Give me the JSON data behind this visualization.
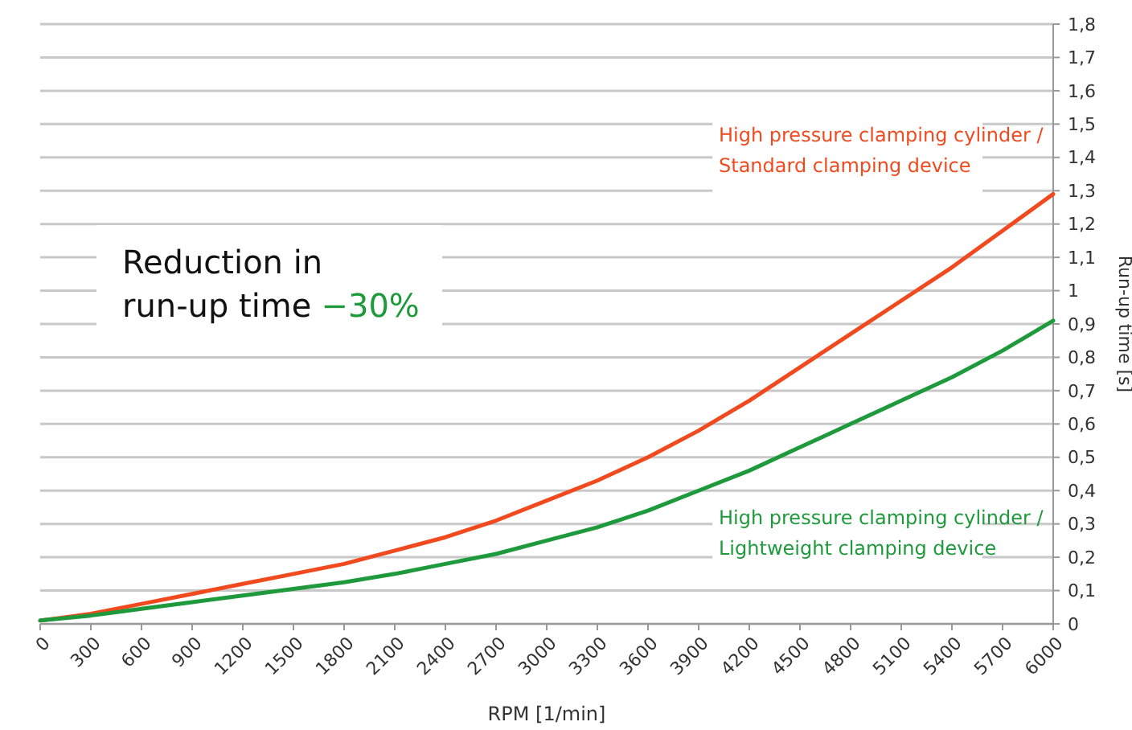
{
  "chart_data": {
    "type": "line",
    "xlabel": "RPM [1/min]",
    "ylabel": "Run-up time [s]",
    "annotations": [
      "Reduction in\nrun-up time",
      "−30%"
    ],
    "x": [
      0,
      300,
      600,
      900,
      1200,
      1500,
      1800,
      2100,
      2400,
      2700,
      3000,
      3300,
      3600,
      3900,
      4200,
      4500,
      4800,
      5100,
      5400,
      5700,
      6000
    ],
    "series": [
      {
        "name": "High pressure clamping cylinder /\nStandard clamping device",
        "color": "#f04a1e",
        "values": [
          0.01,
          0.03,
          0.06,
          0.09,
          0.12,
          0.15,
          0.18,
          0.22,
          0.26,
          0.31,
          0.37,
          0.43,
          0.5,
          0.58,
          0.67,
          0.77,
          0.87,
          0.97,
          1.07,
          1.18,
          1.29
        ]
      },
      {
        "name": "High pressure clamping cylinder /\nLightweight clamping device",
        "color": "#1e9a3c",
        "values": [
          0.01,
          0.025,
          0.045,
          0.065,
          0.085,
          0.105,
          0.125,
          0.15,
          0.18,
          0.21,
          0.25,
          0.29,
          0.34,
          0.4,
          0.46,
          0.53,
          0.6,
          0.67,
          0.74,
          0.82,
          0.91
        ]
      }
    ],
    "xlim": [
      0,
      6000
    ],
    "xticks": [
      0,
      300,
      600,
      900,
      1200,
      1500,
      1800,
      2100,
      2400,
      2700,
      3000,
      3300,
      3600,
      3900,
      4200,
      4500,
      4800,
      5100,
      5400,
      5700,
      6000
    ],
    "ylim": [
      0,
      1.8
    ],
    "yticks": [
      0,
      {
        "value": 0.1,
        "label": "0,1"
      },
      {
        "value": 0.2,
        "label": "0,2"
      },
      {
        "value": 0.3,
        "label": "0,3"
      },
      {
        "value": 0.4,
        "label": "0,4"
      },
      {
        "value": 0.5,
        "label": "0,5"
      },
      {
        "value": 0.6,
        "label": "0,6"
      },
      {
        "value": 0.7,
        "label": "0,7"
      },
      {
        "value": 0.8,
        "label": "0,8"
      },
      {
        "value": 0.9,
        "label": "0,9"
      },
      1,
      {
        "value": 1.1,
        "label": "1,1"
      },
      {
        "value": 1.2,
        "label": "1,2"
      },
      {
        "value": 1.3,
        "label": "1,3"
      },
      {
        "value": 1.4,
        "label": "1,4"
      },
      {
        "value": 1.5,
        "label": "1,5"
      },
      {
        "value": 1.6,
        "label": "1,6"
      },
      {
        "value": 1.7,
        "label": "1,7"
      },
      {
        "value": 1.8,
        "label": "1,8"
      }
    ],
    "grid": "y",
    "marker": "none",
    "line_style": "solid"
  }
}
